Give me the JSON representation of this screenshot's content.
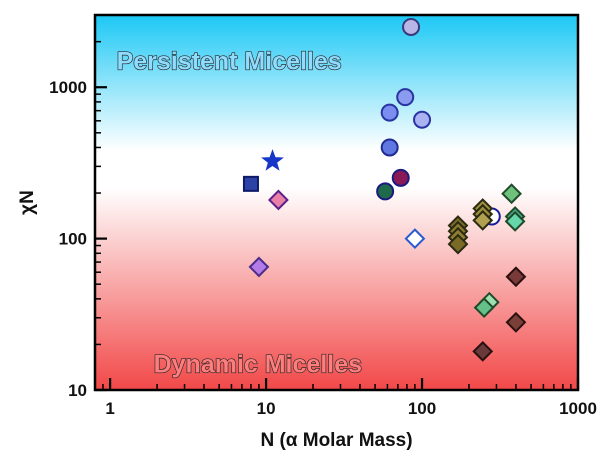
{
  "chart_data": {
    "type": "scatter",
    "xlabel": "N (α Molar Mass)",
    "ylabel": "χN",
    "xscale": "log",
    "yscale": "log",
    "xlim": [
      0.8,
      1000
    ],
    "ylim": [
      10,
      3000
    ],
    "x_ticks": [
      "1",
      "10",
      "100",
      "1000"
    ],
    "y_ticks": [
      "10",
      "100",
      "1000"
    ],
    "background_gradient": {
      "top_color": "#1cc8f5",
      "middle_color": "#ffffff",
      "bottom_color": "#f24848"
    },
    "annotations": [
      {
        "text": "Persistent Micelles",
        "x": 1.1,
        "y": 1500,
        "color": "#8fdcff"
      },
      {
        "text": "Dynamic Micelles",
        "x": 1.9,
        "y": 15,
        "color": "#ff7d7d"
      }
    ],
    "points": [
      {
        "x": 8,
        "y": 230,
        "shape": "square",
        "fill": "#2c43a5",
        "stroke": "#0d1a66"
      },
      {
        "x": 11,
        "y": 325,
        "shape": "star",
        "fill": "#1636c9",
        "stroke": "#1636c9"
      },
      {
        "x": 12,
        "y": 180,
        "shape": "diamond",
        "fill": "#ea7fa8",
        "stroke": "#5a1f8a"
      },
      {
        "x": 9,
        "y": 65,
        "shape": "diamond",
        "fill": "#b47ae8",
        "stroke": "#4a2a8a"
      },
      {
        "x": 85,
        "y": 2500,
        "shape": "circle",
        "fill": "#b8b6e6",
        "stroke": "#3a3a7a"
      },
      {
        "x": 62,
        "y": 680,
        "shape": "circle",
        "fill": "#7b8ef0",
        "stroke": "#2a34a0"
      },
      {
        "x": 78,
        "y": 860,
        "shape": "circle",
        "fill": "#8b9cf0",
        "stroke": "#2a34a0"
      },
      {
        "x": 100,
        "y": 610,
        "shape": "circle",
        "fill": "#aab2f2",
        "stroke": "#2a34a0"
      },
      {
        "x": 62,
        "y": 400,
        "shape": "circle",
        "fill": "#6076e0",
        "stroke": "#1e2a90"
      },
      {
        "x": 58,
        "y": 205,
        "shape": "circle",
        "fill": "#1e6a4a",
        "stroke": "#1a1a80"
      },
      {
        "x": 73,
        "y": 252,
        "shape": "circle",
        "fill": "#8a1a55",
        "stroke": "#1a1a80"
      },
      {
        "x": 90,
        "y": 100,
        "shape": "diamond",
        "fill": "#ffffff",
        "stroke": "#2a5ad0"
      },
      {
        "x": 280,
        "y": 140,
        "shape": "circle",
        "fill": "#ffffff",
        "stroke": "#1a1aa0"
      },
      {
        "x": 170,
        "y": 122,
        "shape": "diamond",
        "fill": "#7a6a2a",
        "stroke": "#2a2a10"
      },
      {
        "x": 170,
        "y": 112,
        "shape": "diamond",
        "fill": "#8a7a30",
        "stroke": "#2a2a10"
      },
      {
        "x": 170,
        "y": 102,
        "shape": "diamond",
        "fill": "#8e7e34",
        "stroke": "#2a2a10"
      },
      {
        "x": 170,
        "y": 92,
        "shape": "diamond",
        "fill": "#7a6a28",
        "stroke": "#2a2a10"
      },
      {
        "x": 245,
        "y": 158,
        "shape": "diamond",
        "fill": "#a09040",
        "stroke": "#2a2a10"
      },
      {
        "x": 245,
        "y": 145,
        "shape": "diamond",
        "fill": "#9a8a3a",
        "stroke": "#2a2a10"
      },
      {
        "x": 245,
        "y": 132,
        "shape": "diamond",
        "fill": "#b0a050",
        "stroke": "#2a2a10"
      },
      {
        "x": 375,
        "y": 198,
        "shape": "diamond",
        "fill": "#6fc07a",
        "stroke": "#1e4a2a"
      },
      {
        "x": 395,
        "y": 140,
        "shape": "diamond",
        "fill": "#4aa88a",
        "stroke": "#1e4a2a"
      },
      {
        "x": 395,
        "y": 130,
        "shape": "diamond",
        "fill": "#66d6aa",
        "stroke": "#1e4a2a"
      },
      {
        "x": 270,
        "y": 38,
        "shape": "diamond",
        "fill": "#9ee0b0",
        "stroke": "#1e4a2a"
      },
      {
        "x": 250,
        "y": 35,
        "shape": "diamond",
        "fill": "#64c088",
        "stroke": "#1e4a2a"
      },
      {
        "x": 400,
        "y": 56,
        "shape": "diamond",
        "fill": "#7a3a3a",
        "stroke": "#2a1010"
      },
      {
        "x": 400,
        "y": 28,
        "shape": "diamond",
        "fill": "#7a4038",
        "stroke": "#2a1010"
      },
      {
        "x": 245,
        "y": 18,
        "shape": "diamond",
        "fill": "#6a3a3a",
        "stroke": "#2a1010"
      }
    ]
  }
}
